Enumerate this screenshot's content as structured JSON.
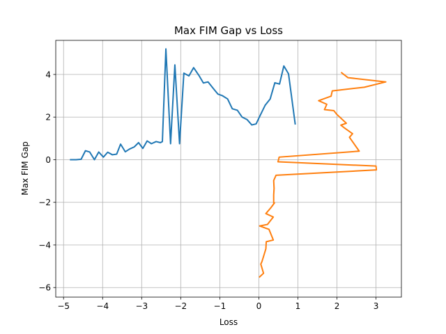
{
  "chart_data": {
    "type": "line",
    "title": "Max FIM Gap vs Loss",
    "xlabel": "Loss",
    "ylabel": "Max FIM Gap",
    "xlim": [
      -5.2,
      3.65
    ],
    "ylim": [
      -6.45,
      5.6
    ],
    "xticks": [
      -5,
      -4,
      -3,
      -2,
      -1,
      0,
      1,
      2,
      3
    ],
    "yticks": [
      -6,
      -4,
      -2,
      0,
      2,
      4
    ],
    "grid": true,
    "legend": "none",
    "colors": {
      "series_1": "#1f77b4",
      "series_2": "#ff7f0e"
    },
    "series": [
      {
        "x": [
          -4.82,
          -4.68,
          -4.55,
          -4.44,
          -4.33,
          -4.21,
          -4.1,
          -3.98,
          -3.87,
          -3.75,
          -3.64,
          -3.54,
          -3.42,
          -3.31,
          -3.19,
          -3.08,
          -2.97,
          -2.86,
          -2.75,
          -2.63,
          -2.52,
          -2.47,
          -2.38,
          -2.26,
          -2.15,
          -2.03,
          -1.92,
          -1.79,
          -1.67,
          -1.54,
          -1.42,
          -1.3,
          -1.17,
          -1.05,
          -0.93,
          -0.8,
          -0.68,
          -0.55,
          -0.43,
          -0.3,
          -0.18,
          -0.07,
          0.04,
          0.16,
          0.29,
          0.41,
          0.53,
          0.64,
          0.76,
          0.93
        ],
        "y": [
          0.0,
          0.0,
          0.02,
          0.42,
          0.36,
          0.0,
          0.36,
          0.12,
          0.35,
          0.23,
          0.26,
          0.73,
          0.37,
          0.5,
          0.6,
          0.8,
          0.53,
          0.88,
          0.75,
          0.85,
          0.8,
          0.85,
          5.2,
          0.75,
          4.45,
          0.75,
          4.06,
          3.93,
          4.32,
          3.97,
          3.6,
          3.65,
          3.35,
          3.08,
          3.0,
          2.85,
          2.39,
          2.32,
          2.0,
          1.88,
          1.63,
          1.68,
          2.1,
          2.55,
          2.85,
          3.61,
          3.55,
          4.4,
          4.03,
          1.68
        ]
      },
      {
        "x": [
          2.12,
          2.28,
          3.25,
          2.7,
          1.88,
          1.85,
          1.53,
          1.74,
          1.68,
          1.92,
          2.0,
          2.24,
          2.1,
          2.2,
          2.4,
          2.32,
          2.57,
          0.52,
          0.49,
          3.0,
          3.01,
          0.44,
          0.38,
          0.39,
          0.38,
          0.38,
          0.4,
          0.31,
          0.18,
          0.37,
          0.22,
          0.02,
          0.26,
          0.37,
          0.19,
          0.18,
          0.08,
          0.05,
          0.12,
          0.02
        ],
        "y": [
          4.08,
          3.85,
          3.65,
          3.4,
          3.23,
          2.98,
          2.77,
          2.6,
          2.35,
          2.3,
          2.12,
          1.71,
          1.62,
          1.48,
          1.22,
          1.05,
          0.4,
          0.12,
          -0.1,
          -0.3,
          -0.48,
          -0.73,
          -0.98,
          -1.35,
          -1.65,
          -2.03,
          -2.03,
          -2.25,
          -2.53,
          -2.69,
          -3.04,
          -3.11,
          -3.27,
          -3.77,
          -3.85,
          -4.18,
          -4.78,
          -4.9,
          -5.33,
          -5.5
        ]
      }
    ]
  }
}
